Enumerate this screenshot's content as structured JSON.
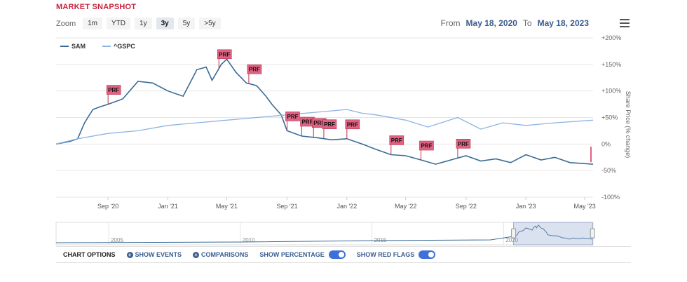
{
  "header": {
    "title": "MARKET SNAPSHOT",
    "zoom_label": "Zoom",
    "zoom_buttons": [
      "1m",
      "YTD",
      "1y",
      "3y",
      "5y",
      ">5y"
    ],
    "zoom_active": "3y",
    "from_label": "From",
    "from_date": "May 18, 2020",
    "to_label": "To",
    "to_date": "May 18, 2023",
    "menu_icon": "hamburger-menu-icon"
  },
  "chart_data": {
    "type": "line",
    "ylabel": "Share Price (% change)",
    "ylim": [
      -100,
      200
    ],
    "y_ticks": [
      "+200%",
      "+150%",
      "+100%",
      "+50%",
      "0%",
      "-50%",
      "-100%"
    ],
    "y_tick_values": [
      200,
      150,
      100,
      50,
      0,
      -50,
      -100
    ],
    "x_ticks": [
      "Sep '20",
      "Jan '21",
      "May '21",
      "Sep '21",
      "Jan '22",
      "May '22",
      "Sep '22",
      "Jan '23",
      "May '23"
    ],
    "x_tick_values": [
      "2020-09-01",
      "2021-01-01",
      "2021-05-01",
      "2021-09-01",
      "2022-01-01",
      "2022-05-01",
      "2022-09-01",
      "2023-01-01",
      "2023-05-01"
    ],
    "x_range": [
      "2020-05-18",
      "2023-05-18"
    ],
    "grid": true,
    "legend": "top-left",
    "series": [
      {
        "name": "SAM",
        "color": "#3a6b96",
        "x": [
          "2020-05-18",
          "2020-06-15",
          "2020-07-01",
          "2020-07-15",
          "2020-08-01",
          "2020-08-15",
          "2020-09-01",
          "2020-10-01",
          "2020-11-01",
          "2020-12-01",
          "2021-01-01",
          "2021-02-01",
          "2021-03-01",
          "2021-03-20",
          "2021-04-01",
          "2021-04-20",
          "2021-05-01",
          "2021-05-20",
          "2021-06-10",
          "2021-07-01",
          "2021-07-20",
          "2021-08-01",
          "2021-08-20",
          "2021-09-01",
          "2021-10-01",
          "2021-11-01",
          "2021-12-01",
          "2022-01-01",
          "2022-02-01",
          "2022-03-01",
          "2022-04-01",
          "2022-05-01",
          "2022-06-01",
          "2022-07-01",
          "2022-08-01",
          "2022-09-01",
          "2022-10-01",
          "2022-11-01",
          "2022-12-01",
          "2023-01-01",
          "2023-02-01",
          "2023-03-01",
          "2023-04-01",
          "2023-05-18"
        ],
        "values": [
          0,
          5,
          10,
          40,
          65,
          70,
          75,
          85,
          118,
          115,
          100,
          90,
          140,
          145,
          120,
          150,
          160,
          135,
          115,
          110,
          90,
          75,
          55,
          25,
          15,
          12,
          8,
          10,
          0,
          -10,
          -20,
          -22,
          -30,
          -38,
          -30,
          -22,
          -32,
          -28,
          -35,
          -20,
          -30,
          -25,
          -35,
          -38
        ]
      },
      {
        "name": "^GSPC",
        "color": "#8db4e2",
        "x": [
          "2020-05-18",
          "2020-07-01",
          "2020-09-01",
          "2020-11-01",
          "2021-01-01",
          "2021-03-01",
          "2021-05-01",
          "2021-07-01",
          "2021-09-01",
          "2021-11-01",
          "2022-01-01",
          "2022-02-01",
          "2022-03-01",
          "2022-05-01",
          "2022-06-15",
          "2022-08-15",
          "2022-10-01",
          "2022-11-15",
          "2023-01-01",
          "2023-03-01",
          "2023-05-18"
        ],
        "values": [
          0,
          10,
          20,
          25,
          35,
          40,
          45,
          50,
          55,
          60,
          65,
          58,
          55,
          45,
          32,
          50,
          28,
          40,
          35,
          40,
          45
        ]
      }
    ],
    "event_flags": [
      {
        "label": "PRF",
        "date": "2020-09-01"
      },
      {
        "label": "PRF",
        "date": "2021-04-15"
      },
      {
        "label": "PRF",
        "date": "2021-06-15"
      },
      {
        "label": "PRF",
        "date": "2021-09-01"
      },
      {
        "label": "PRF",
        "date": "2021-10-01"
      },
      {
        "label": "PRF",
        "date": "2021-10-25"
      },
      {
        "label": "PRF",
        "date": "2021-11-15"
      },
      {
        "label": "PRF",
        "date": "2022-01-01"
      },
      {
        "label": "PRF",
        "date": "2022-04-01"
      },
      {
        "label": "PRF",
        "date": "2022-06-01"
      },
      {
        "label": "PRF",
        "date": "2022-08-15"
      }
    ],
    "navigator": {
      "x_ticks": [
        "2005",
        "2010",
        "2015",
        "2020"
      ],
      "x_tick_values": [
        2005,
        2010,
        2015,
        2020
      ],
      "x_range": [
        2003,
        2023.4
      ],
      "selected_range": [
        2020.38,
        2023.38
      ]
    }
  },
  "options": {
    "chart_options_label": "CHART OPTIONS",
    "show_events_label": "SHOW EVENTS",
    "comparisons_label": "COMPARISONS",
    "show_percentage_label": "SHOW PERCENTAGE",
    "show_percentage_on": true,
    "show_red_flags_label": "SHOW RED FLAGS",
    "show_red_flags_on": true
  }
}
